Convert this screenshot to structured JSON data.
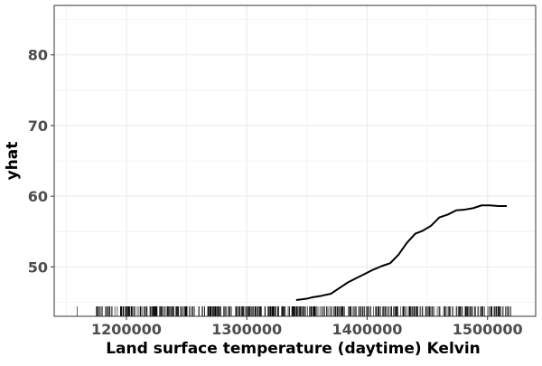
{
  "chart_data": {
    "type": "line",
    "title": "",
    "xlabel": "Land surface temperature (daytime) Kelvin",
    "ylabel": "yhat",
    "xlim": [
      1140000,
      1540000
    ],
    "ylim": [
      43,
      87
    ],
    "x_ticks": [
      1200000,
      1300000,
      1400000,
      1500000
    ],
    "x_tick_labels": [
      "1200000",
      "1300000",
      "1400000",
      "1500000"
    ],
    "y_ticks": [
      50,
      60,
      70,
      80
    ],
    "y_tick_labels": [
      "50",
      "60",
      "70",
      "80"
    ],
    "grid": true,
    "legend": "none",
    "series": [
      {
        "x": [
          1341000,
          1350000,
          1355000,
          1362000,
          1370000,
          1377000,
          1384000,
          1391000,
          1398000,
          1405000,
          1412000,
          1419000,
          1426000,
          1433000,
          1440000,
          1446000,
          1453000,
          1460000,
          1467000,
          1474000,
          1481000,
          1488000,
          1495000,
          1502000,
          1509000,
          1516000
        ],
        "y": [
          45.3,
          45.5,
          45.7,
          45.9,
          46.2,
          47.0,
          47.8,
          48.4,
          49.0,
          49.6,
          50.1,
          50.5,
          51.7,
          53.4,
          54.7,
          55.1,
          55.8,
          57.0,
          57.4,
          58.0,
          58.1,
          58.3,
          58.7,
          58.7,
          58.6,
          58.6
        ]
      }
    ],
    "rug": {
      "x_range": [
        1159000,
        1520000
      ],
      "dense_range": [
        1195000,
        1520000
      ]
    },
    "colors": {
      "line": "#000000",
      "grid": "#ebebeb",
      "panel_border": "#333333",
      "tick_label": "#4d4d4d",
      "background": "#ffffff"
    }
  }
}
